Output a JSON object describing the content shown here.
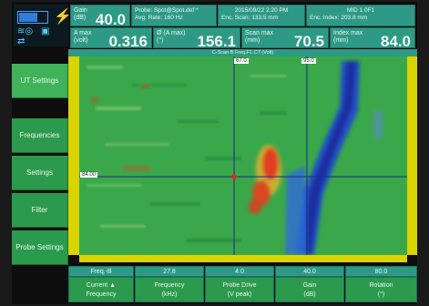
{
  "header": {
    "gain": {
      "label": "Gain\n(dB)",
      "value": "40.0"
    },
    "info_line1": "Probe: Spot@Spot.def *",
    "info_line2": "Avg. Rate: 160 Hz",
    "datetime": "2015/09/22 2:20 PM",
    "mode": "MID  1.0F1",
    "enc_scan": "Enc. Scan: 133.5 mm",
    "enc_index": "Enc. Index: 203.8 mm",
    "a_max": {
      "label": "A max\n(volt)",
      "value": "0.316"
    },
    "phi_a_max": {
      "label": "Ø (A max)\n(°)",
      "value": "156.1"
    },
    "scan_max": {
      "label": "Scan max\n(mm)",
      "value": "70.5"
    },
    "index_max": {
      "label": "Index max\n(mm)",
      "value": "84.0"
    }
  },
  "sidebar": {
    "items": [
      {
        "label": "UT Settings",
        "active": true
      },
      {
        "label": "Frequencies",
        "active": false
      },
      {
        "label": "Settings",
        "active": false
      },
      {
        "label": "Filter",
        "active": false
      },
      {
        "label": "Probe Settings",
        "active": false
      }
    ]
  },
  "plot": {
    "title": "C-Scan B Freq.F1 CT (Volt)",
    "cursor_scan_label": "67.0",
    "cursor_scan2_label": "95.0",
    "cursor_index_label": "84.00"
  },
  "bottom": {
    "selector_head": "Freq.-B",
    "selector_body": "Current ▲\nFrequency",
    "columns": [
      {
        "head": "27.8",
        "body": "Frequency\n(kHz)"
      },
      {
        "head": "4.0",
        "body": "Probe Drive\n(V peak)"
      },
      {
        "head": "40.0",
        "body": "Gain\n(dB)"
      },
      {
        "head": "80.0",
        "body": "Rotation\n(°)"
      }
    ]
  },
  "colors": {
    "teal": "#2e9a86",
    "green": "#2c9a4c",
    "axis_yellow": "#d9d300",
    "cursor": "#1a2a8a"
  }
}
